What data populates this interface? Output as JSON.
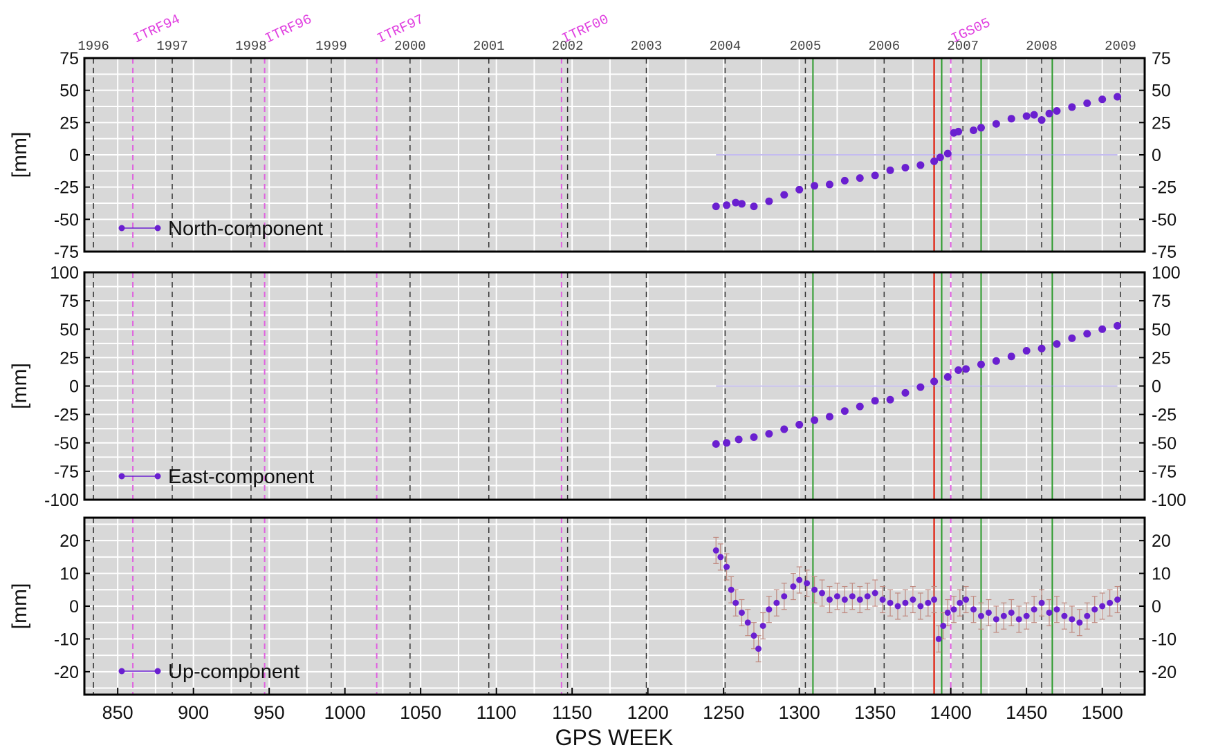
{
  "chart_data": {
    "type": "scatter",
    "title": "",
    "xlabel": "GPS WEEK",
    "xlim": [
      828,
      1528
    ],
    "x_ticks": [
      850,
      900,
      950,
      1000,
      1050,
      1100,
      1150,
      1200,
      1250,
      1300,
      1350,
      1400,
      1450,
      1500
    ],
    "year_ticks": [
      {
        "label": "1996",
        "week": 834
      },
      {
        "label": "1997",
        "week": 886
      },
      {
        "label": "1998",
        "week": 938
      },
      {
        "label": "1999",
        "week": 991
      },
      {
        "label": "2000",
        "week": 1043
      },
      {
        "label": "2001",
        "week": 1095
      },
      {
        "label": "2002",
        "week": 1147
      },
      {
        "label": "2003",
        "week": 1199
      },
      {
        "label": "2004",
        "week": 1251
      },
      {
        "label": "2005",
        "week": 1304
      },
      {
        "label": "2006",
        "week": 1356
      },
      {
        "label": "2007",
        "week": 1408
      },
      {
        "label": "2008",
        "week": 1460
      },
      {
        "label": "2009",
        "week": 1512
      }
    ],
    "reference_frames": [
      {
        "label": "ITRF94",
        "week": 860
      },
      {
        "label": "ITRF96",
        "week": 947
      },
      {
        "label": "ITRF97",
        "week": 1021
      },
      {
        "label": "ITRF00",
        "week": 1143
      },
      {
        "label": "IGS05",
        "week": 1400
      }
    ],
    "discontinuity_week": 1389,
    "green_lines": [
      1309,
      1394,
      1420,
      1467
    ],
    "colors": {
      "points": "#6a1fd0",
      "error_bars": "#c08a80",
      "panel_bg": "#d8d8d8",
      "grid": "#ffffff",
      "year_lines": "#333333",
      "frame_lines": "#e060e0",
      "discontinuity": "#e03020",
      "green_lines": "#2a9a2a",
      "zero_line": "#8878e0"
    },
    "panels": [
      {
        "label": "North-component",
        "ylabel": "[mm]",
        "ylim": [
          -75,
          75
        ],
        "y_ticks": [
          75,
          50,
          25,
          0,
          -25,
          -50,
          -75
        ],
        "x": [
          1245,
          1252,
          1258,
          1262,
          1270,
          1280,
          1290,
          1300,
          1310,
          1320,
          1330,
          1340,
          1350,
          1360,
          1370,
          1380,
          1389,
          1393,
          1398,
          1402,
          1405,
          1415,
          1420,
          1430,
          1440,
          1450,
          1455,
          1460,
          1465,
          1470,
          1480,
          1490,
          1500,
          1510
        ],
        "values": [
          -40,
          -39,
          -37,
          -38,
          -40,
          -36,
          -31,
          -27,
          -24,
          -23,
          -20,
          -18,
          -16,
          -12,
          -10,
          -8,
          -5,
          -2,
          1,
          17,
          18,
          19,
          21,
          24,
          28,
          30,
          31,
          27,
          32,
          34,
          37,
          40,
          43,
          45
        ]
      },
      {
        "label": "East-component",
        "ylabel": "[mm]",
        "ylim": [
          -100,
          100
        ],
        "y_ticks": [
          100,
          75,
          50,
          25,
          0,
          -25,
          -50,
          -75,
          -100
        ],
        "x": [
          1245,
          1252,
          1260,
          1270,
          1280,
          1290,
          1300,
          1310,
          1320,
          1330,
          1340,
          1350,
          1360,
          1370,
          1380,
          1389,
          1398,
          1405,
          1410,
          1420,
          1430,
          1440,
          1450,
          1460,
          1470,
          1480,
          1490,
          1500,
          1510
        ],
        "values": [
          -51,
          -50,
          -47,
          -45,
          -42,
          -38,
          -34,
          -30,
          -27,
          -22,
          -18,
          -13,
          -12,
          -6,
          -1,
          4,
          8,
          14,
          15,
          19,
          22,
          26,
          31,
          33,
          37,
          42,
          46,
          50,
          53
        ]
      },
      {
        "label": "Up-component",
        "ylabel": "[mm]",
        "ylim": [
          -27,
          27
        ],
        "y_ticks": [
          20,
          10,
          0,
          -10,
          -20
        ],
        "x": [
          1245,
          1248,
          1252,
          1255,
          1258,
          1262,
          1266,
          1270,
          1273,
          1276,
          1280,
          1285,
          1290,
          1296,
          1300,
          1305,
          1310,
          1315,
          1320,
          1325,
          1330,
          1335,
          1340,
          1345,
          1350,
          1355,
          1360,
          1365,
          1370,
          1375,
          1380,
          1385,
          1389,
          1392,
          1395,
          1398,
          1402,
          1406,
          1410,
          1415,
          1420,
          1425,
          1430,
          1435,
          1440,
          1445,
          1450,
          1455,
          1460,
          1465,
          1470,
          1475,
          1480,
          1485,
          1490,
          1495,
          1500,
          1505,
          1510
        ],
        "values": [
          17,
          15,
          12,
          5,
          1,
          -2,
          -5,
          -9,
          -13,
          -6,
          -1,
          1,
          3,
          6,
          8,
          7,
          5,
          4,
          2,
          3,
          2,
          3,
          2,
          3,
          4,
          2,
          1,
          0,
          1,
          2,
          0,
          1,
          2,
          -10,
          -6,
          -2,
          -1,
          1,
          2,
          -1,
          -3,
          -2,
          -4,
          -3,
          -2,
          -4,
          -3,
          -1,
          1,
          -2,
          -1,
          -3,
          -4,
          -5,
          -3,
          -1,
          0,
          1,
          2
        ]
      }
    ]
  }
}
